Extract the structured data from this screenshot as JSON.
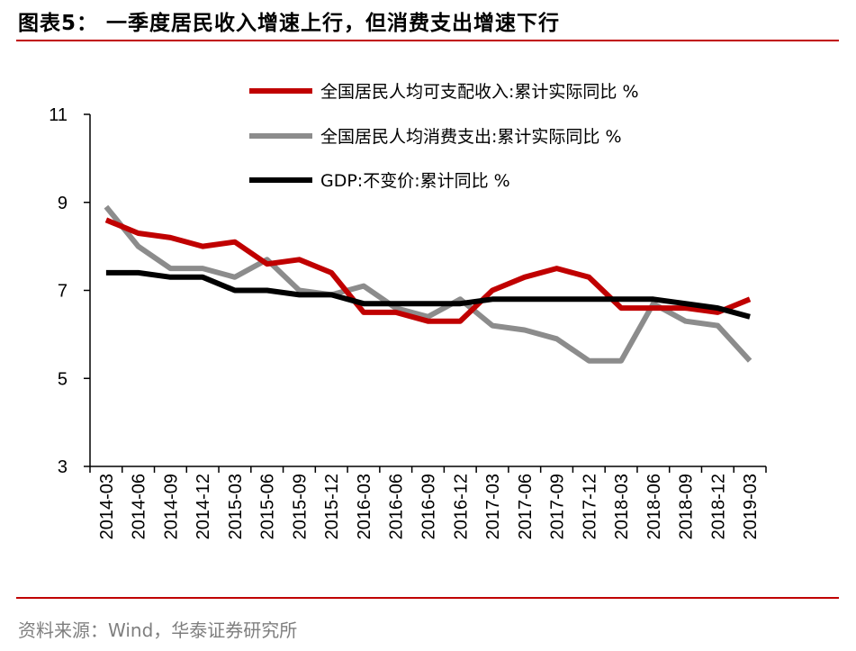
{
  "header": {
    "title": "图表5：  一季度居民收入增速上行，但消费支出增速下行"
  },
  "footer": {
    "source": "资料来源：Wind，华泰证券研究所"
  },
  "colors": {
    "accent": "#c00000",
    "income": "#c00000",
    "consumption": "#8c8c8c",
    "gdp": "#000000"
  },
  "chart_data": {
    "type": "line",
    "categories": [
      "2014-03",
      "2014-06",
      "2014-09",
      "2014-12",
      "2015-03",
      "2015-06",
      "2015-09",
      "2015-12",
      "2016-03",
      "2016-06",
      "2016-09",
      "2016-12",
      "2017-03",
      "2017-06",
      "2017-09",
      "2017-12",
      "2018-03",
      "2018-06",
      "2018-09",
      "2018-12",
      "2019-03"
    ],
    "ylim": [
      3,
      11
    ],
    "yticks": [
      3,
      5,
      7,
      9,
      11
    ],
    "legend_position": "top",
    "grid": false,
    "series": [
      {
        "name": "全国居民人均可支配收入:累计实际同比 %",
        "color": "#c00000",
        "values": [
          8.6,
          8.3,
          8.2,
          8.0,
          8.1,
          7.6,
          7.7,
          7.4,
          6.5,
          6.5,
          6.3,
          6.3,
          7.0,
          7.3,
          7.5,
          7.3,
          6.6,
          6.6,
          6.6,
          6.5,
          6.8
        ]
      },
      {
        "name": "全国居民人均消费支出:累计实际同比 %",
        "color": "#8c8c8c",
        "values": [
          8.9,
          8.0,
          7.5,
          7.5,
          7.3,
          7.7,
          7.0,
          6.9,
          7.1,
          6.6,
          6.4,
          6.8,
          6.2,
          6.1,
          5.9,
          5.4,
          5.4,
          6.7,
          6.3,
          6.2,
          5.4
        ]
      },
      {
        "name": "GDP:不变价:累计同比 %",
        "color": "#000000",
        "values": [
          7.4,
          7.4,
          7.3,
          7.3,
          7.0,
          7.0,
          6.9,
          6.9,
          6.7,
          6.7,
          6.7,
          6.7,
          6.8,
          6.8,
          6.8,
          6.8,
          6.8,
          6.8,
          6.7,
          6.6,
          6.4
        ]
      }
    ]
  }
}
